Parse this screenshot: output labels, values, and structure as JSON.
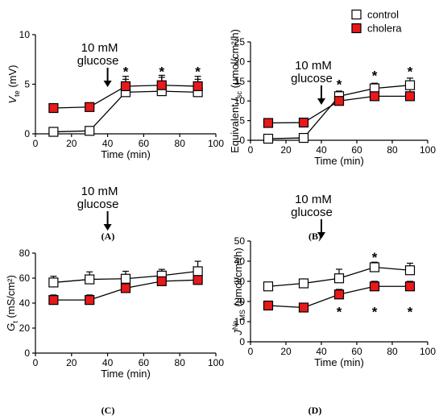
{
  "legend": {
    "entries": [
      {
        "label": "control",
        "fill": "#ffffff"
      },
      {
        "label": "cholera",
        "fill": "#e8191b"
      }
    ]
  },
  "colors": {
    "control": "#ffffff",
    "cholera": "#e8191b",
    "stroke": "#000000"
  },
  "chart_data": [
    {
      "id": "A",
      "type": "line",
      "panel_label": "(A)",
      "ylabel": "Vte (mV)",
      "ylabel_main": "V",
      "ylabel_sub": "te",
      "ylabel_tail": " (mV)",
      "xlabel": "Time (min)",
      "xlim": [
        0,
        100
      ],
      "ylim": [
        0,
        10
      ],
      "xticks": [
        0,
        20,
        40,
        60,
        80,
        100
      ],
      "yticks": [
        0,
        5,
        10
      ],
      "annotation": {
        "line1": "10 mM",
        "line2": "glucose",
        "x": 40
      },
      "series": [
        {
          "name": "control",
          "x": [
            10,
            30,
            50,
            70,
            90
          ],
          "y": [
            0.2,
            0.3,
            4.2,
            4.3,
            4.2
          ],
          "err": [
            0.2,
            0.3,
            1.6,
            1.6,
            1.6
          ]
        },
        {
          "name": "cholera",
          "x": [
            10,
            30,
            50,
            70,
            90
          ],
          "y": [
            2.6,
            2.7,
            4.8,
            4.9,
            4.8
          ],
          "err": [
            0.2,
            0.2,
            0.7,
            0.8,
            0.7
          ]
        }
      ],
      "significance": [
        {
          "label": "*",
          "x": 50,
          "y": 6.3
        },
        {
          "label": "*",
          "x": 70,
          "y": 6.3
        },
        {
          "label": "*",
          "x": 90,
          "y": 6.3
        }
      ]
    },
    {
      "id": "B",
      "type": "line",
      "panel_label": "(B)",
      "ylabel": "Equivalent Isc (μmol/cm²/h)",
      "ylabel_main": "Equivalent I",
      "ylabel_sub": "sc",
      "ylabel_tail": " (μmol/cm²/h)",
      "xlabel": "Time (min)",
      "xlim": [
        0,
        100
      ],
      "ylim": [
        0,
        25
      ],
      "xticks": [
        0,
        20,
        40,
        60,
        80,
        100
      ],
      "yticks": [
        0,
        5,
        10,
        15,
        20,
        25
      ],
      "annotation": {
        "line1": "10 mM",
        "line2": "glucose",
        "x": 40
      },
      "series": [
        {
          "name": "control",
          "x": [
            10,
            30,
            50,
            70,
            90
          ],
          "y": [
            0.4,
            0.6,
            11.2,
            13.2,
            14
          ],
          "err": [
            0.3,
            0.4,
            1.2,
            1.3,
            1.8
          ]
        },
        {
          "name": "cholera",
          "x": [
            10,
            30,
            50,
            70,
            90
          ],
          "y": [
            4.4,
            4.5,
            10,
            11.2,
            11.2
          ],
          "err": [
            0.4,
            0.4,
            2.5,
            2.6,
            2.5
          ]
        }
      ],
      "significance": [
        {
          "label": "*",
          "x": 50,
          "y": 14.2
        },
        {
          "label": "*",
          "x": 70,
          "y": 16.5
        },
        {
          "label": "*",
          "x": 90,
          "y": 17.5
        }
      ]
    },
    {
      "id": "C",
      "type": "line",
      "panel_label": "(C)",
      "ylabel": "Gt (mS/cm²)",
      "ylabel_main": "G",
      "ylabel_sub": "t",
      "ylabel_tail": " (mS/cm²)",
      "xlabel": "Time (min)",
      "xlim": [
        0,
        100
      ],
      "ylim": [
        0,
        80
      ],
      "xticks": [
        0,
        20,
        40,
        60,
        80,
        100
      ],
      "yticks": [
        0,
        20,
        40,
        60,
        80
      ],
      "annotation": {
        "line1": "10 mM",
        "line2": "glucose",
        "x": 40
      },
      "series": [
        {
          "name": "control",
          "x": [
            10,
            30,
            50,
            70,
            90
          ],
          "y": [
            56.5,
            59,
            59.5,
            62,
            65.5
          ],
          "err": [
            5,
            6,
            6,
            5,
            8
          ]
        },
        {
          "name": "cholera",
          "x": [
            10,
            30,
            50,
            70,
            90
          ],
          "y": [
            42.5,
            42.5,
            52,
            57.5,
            58.5
          ],
          "err": [
            4,
            4,
            5,
            8,
            8
          ]
        }
      ],
      "significance": []
    },
    {
      "id": "D",
      "type": "line",
      "panel_label": "(D)",
      "ylabel": "JNaMS (μmol/cm²/h)",
      "ylabel_main": "J",
      "ylabel_sup": "Na",
      "ylabel_sub": "MS",
      "ylabel_tail": " (μmol/cm²/h)",
      "xlabel": "Time (min)",
      "xlim": [
        0,
        100
      ],
      "ylim": [
        0,
        50
      ],
      "xticks": [
        0,
        20,
        40,
        60,
        80,
        100
      ],
      "yticks": [
        0,
        10,
        20,
        30,
        40,
        50
      ],
      "annotation": {
        "line1": "10 mM",
        "line2": "glucose",
        "x": 40
      },
      "series": [
        {
          "name": "control",
          "x": [
            10,
            30,
            50,
            70,
            90
          ],
          "y": [
            27.5,
            29,
            31.5,
            37,
            35.5
          ],
          "err": [
            1.5,
            1.5,
            4.5,
            2.5,
            3.5
          ]
        },
        {
          "name": "cholera",
          "x": [
            10,
            30,
            50,
            70,
            90
          ],
          "y": [
            18,
            17,
            23.5,
            27.5,
            27.5
          ],
          "err": [
            1.5,
            1.5,
            2.5,
            2.5,
            2.5
          ]
        }
      ],
      "significance": [
        {
          "label": "*",
          "x": 70,
          "y": 42
        },
        {
          "label": "*",
          "x": 50,
          "y": 15
        },
        {
          "label": "*",
          "x": 70,
          "y": 15
        },
        {
          "label": "*",
          "x": 90,
          "y": 15
        }
      ]
    }
  ]
}
